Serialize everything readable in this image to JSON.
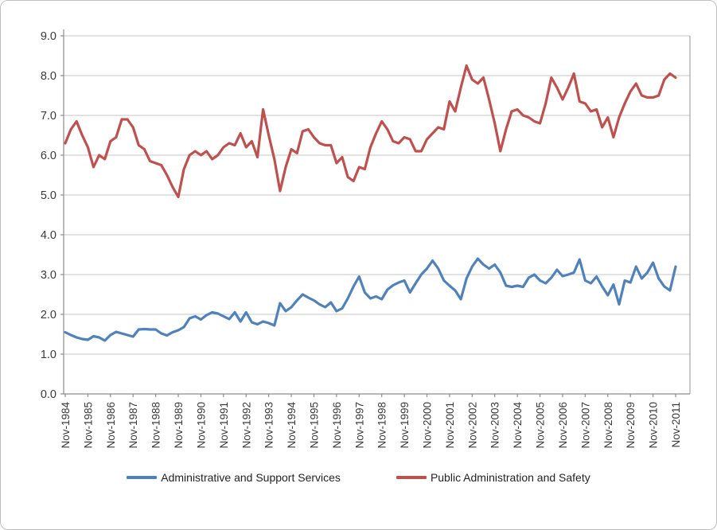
{
  "chart_data": {
    "type": "line",
    "title": "",
    "xlabel": "",
    "ylabel": "",
    "grid": true,
    "legend_position": "bottom",
    "ylim": [
      0,
      9
    ],
    "y_tick_labels": [
      "0.0",
      "1.0",
      "2.0",
      "3.0",
      "4.0",
      "5.0",
      "6.0",
      "7.0",
      "8.0",
      "9.0"
    ],
    "x_frequency": "quarterly (Feb, May, Aug, Nov)",
    "x_tick_labels": [
      "Nov-1984",
      "Nov-1985",
      "Nov-1986",
      "Nov-1987",
      "Nov-1988",
      "Nov-1989",
      "Nov-1990",
      "Nov-1991",
      "Nov-1992",
      "Nov-1993",
      "Nov-1994",
      "Nov-1995",
      "Nov-1996",
      "Nov-1997",
      "Nov-1998",
      "Nov-1999",
      "Nov-2000",
      "Nov-2001",
      "Nov-2002",
      "Nov-2003",
      "Nov-2004",
      "Nov-2005",
      "Nov-2006",
      "Nov-2007",
      "Nov-2008",
      "Nov-2009",
      "Nov-2010",
      "Nov-2011"
    ],
    "series": [
      {
        "name": "Administrative and Support Services",
        "color": "#4F81BD",
        "values": [
          1.55,
          1.48,
          1.42,
          1.38,
          1.36,
          1.45,
          1.42,
          1.34,
          1.48,
          1.56,
          1.52,
          1.48,
          1.44,
          1.62,
          1.63,
          1.62,
          1.62,
          1.52,
          1.47,
          1.55,
          1.6,
          1.68,
          1.9,
          1.95,
          1.87,
          1.98,
          2.05,
          2.02,
          1.95,
          1.88,
          2.05,
          1.82,
          2.05,
          1.8,
          1.75,
          1.82,
          1.78,
          1.72,
          2.28,
          2.08,
          2.18,
          2.35,
          2.5,
          2.42,
          2.35,
          2.25,
          2.18,
          2.3,
          2.08,
          2.15,
          2.4,
          2.7,
          2.95,
          2.55,
          2.4,
          2.45,
          2.38,
          2.62,
          2.73,
          2.8,
          2.85,
          2.55,
          2.78,
          3.0,
          3.15,
          3.35,
          3.15,
          2.85,
          2.72,
          2.6,
          2.38,
          2.9,
          3.2,
          3.4,
          3.25,
          3.15,
          3.25,
          3.05,
          2.72,
          2.69,
          2.72,
          2.69,
          2.92,
          3.0,
          2.85,
          2.78,
          2.92,
          3.12,
          2.96,
          3.0,
          3.05,
          3.38,
          2.85,
          2.78,
          2.95,
          2.7,
          2.48,
          2.75,
          2.25,
          2.85,
          2.8,
          3.2,
          2.9,
          3.05,
          3.3,
          2.9,
          2.7,
          2.6,
          3.2
        ]
      },
      {
        "name": "Public Administration and Safety",
        "color": "#C0504D",
        "values": [
          6.3,
          6.65,
          6.85,
          6.5,
          6.2,
          5.7,
          6.0,
          5.9,
          6.35,
          6.45,
          6.9,
          6.9,
          6.7,
          6.25,
          6.15,
          5.85,
          5.8,
          5.75,
          5.5,
          5.2,
          4.95,
          5.65,
          6.0,
          6.1,
          6.0,
          6.1,
          5.9,
          6.0,
          6.2,
          6.3,
          6.25,
          6.55,
          6.2,
          6.35,
          5.95,
          7.15,
          6.5,
          5.9,
          5.1,
          5.7,
          6.15,
          6.05,
          6.6,
          6.65,
          6.45,
          6.3,
          6.25,
          6.25,
          5.8,
          5.95,
          5.45,
          5.35,
          5.7,
          5.65,
          6.2,
          6.55,
          6.85,
          6.65,
          6.35,
          6.3,
          6.45,
          6.4,
          6.1,
          6.1,
          6.4,
          6.55,
          6.7,
          6.65,
          7.35,
          7.1,
          7.7,
          8.25,
          7.9,
          7.8,
          7.95,
          7.4,
          6.8,
          6.1,
          6.65,
          7.1,
          7.15,
          7.0,
          6.95,
          6.85,
          6.8,
          7.3,
          7.95,
          7.7,
          7.4,
          7.7,
          8.05,
          7.35,
          7.3,
          7.1,
          7.15,
          6.7,
          6.95,
          6.45,
          6.95,
          7.3,
          7.6,
          7.8,
          7.5,
          7.45,
          7.45,
          7.5,
          7.9,
          8.05,
          7.95
        ]
      }
    ]
  },
  "colors": {
    "gridline": "#c6c6c6",
    "axis_line": "#8c8c8c",
    "plot_border": "#a6a6a6",
    "tick_label": "#3a3a3a",
    "frame_border": "#bfbfbf",
    "background": "#ffffff"
  },
  "legend": {
    "items": [
      {
        "label": "Administrative and Support Services"
      },
      {
        "label": "Public Administration and Safety"
      }
    ]
  }
}
